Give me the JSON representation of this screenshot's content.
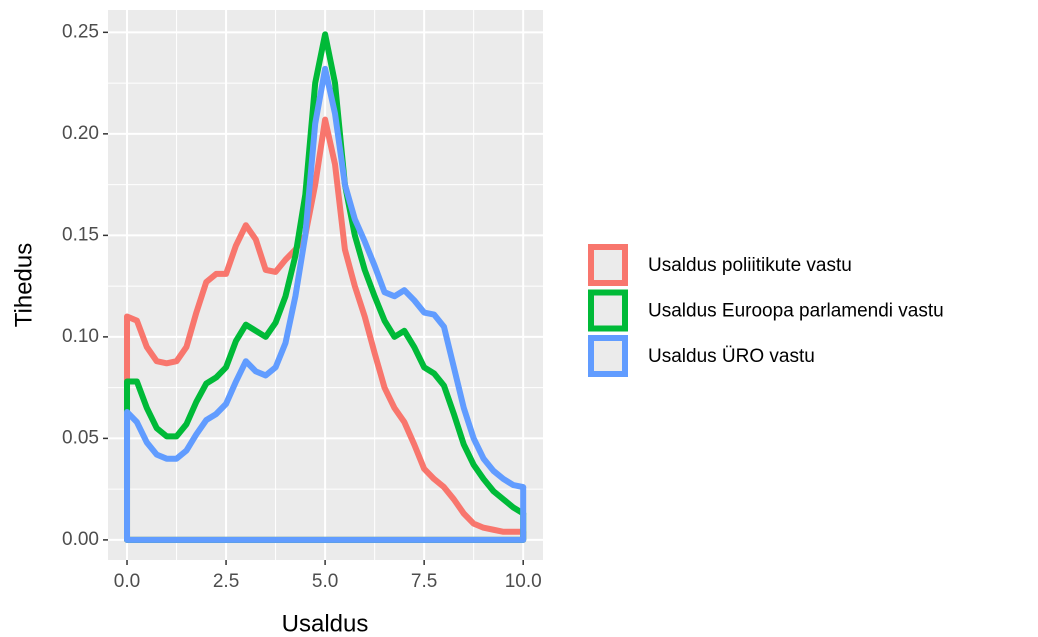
{
  "chart_data": {
    "type": "density",
    "x_label": "Usaldus",
    "y_label": "Tihedus",
    "x": [
      0,
      0.25,
      0.5,
      0.75,
      1,
      1.25,
      1.5,
      1.75,
      2,
      2.25,
      2.5,
      2.75,
      3,
      3.25,
      3.5,
      3.75,
      4,
      4.25,
      4.5,
      4.75,
      5,
      5.25,
      5.5,
      5.75,
      6,
      6.25,
      6.5,
      6.75,
      7,
      7.25,
      7.5,
      7.75,
      8,
      8.25,
      8.5,
      8.75,
      9,
      9.25,
      9.5,
      9.75,
      10
    ],
    "series": [
      {
        "name": "Usaldus poliitikute vastu",
        "color": "#f8766d",
        "values": [
          0.11,
          0.108,
          0.095,
          0.088,
          0.087,
          0.088,
          0.095,
          0.112,
          0.127,
          0.131,
          0.131,
          0.145,
          0.155,
          0.148,
          0.133,
          0.132,
          0.138,
          0.143,
          0.15,
          0.175,
          0.207,
          0.185,
          0.143,
          0.125,
          0.11,
          0.092,
          0.075,
          0.065,
          0.058,
          0.047,
          0.035,
          0.03,
          0.026,
          0.02,
          0.013,
          0.008,
          0.006,
          0.005,
          0.004,
          0.004,
          0.004
        ]
      },
      {
        "name": "Usaldus Euroopa parlamendi vastu",
        "color": "#00ba38",
        "values": [
          0.078,
          0.078,
          0.065,
          0.055,
          0.051,
          0.051,
          0.057,
          0.068,
          0.077,
          0.08,
          0.085,
          0.098,
          0.106,
          0.103,
          0.1,
          0.107,
          0.12,
          0.14,
          0.17,
          0.225,
          0.249,
          0.225,
          0.175,
          0.15,
          0.133,
          0.12,
          0.108,
          0.1,
          0.103,
          0.095,
          0.085,
          0.082,
          0.076,
          0.062,
          0.047,
          0.037,
          0.03,
          0.024,
          0.02,
          0.016,
          0.013
        ]
      },
      {
        "name": "Usaldus ÜRO vastu",
        "color": "#619cff",
        "values": [
          0.063,
          0.058,
          0.048,
          0.042,
          0.04,
          0.04,
          0.044,
          0.052,
          0.059,
          0.062,
          0.067,
          0.078,
          0.088,
          0.083,
          0.081,
          0.085,
          0.097,
          0.12,
          0.15,
          0.205,
          0.232,
          0.21,
          0.175,
          0.158,
          0.147,
          0.135,
          0.122,
          0.12,
          0.123,
          0.118,
          0.112,
          0.111,
          0.105,
          0.085,
          0.065,
          0.05,
          0.04,
          0.034,
          0.03,
          0.027,
          0.026
        ]
      }
    ],
    "xlim": [
      -0.48,
      10.5
    ],
    "ylim": [
      -0.0099,
      0.261
    ],
    "xticks": [
      {
        "value": 0,
        "label": "0.0"
      },
      2.5,
      {
        "value": 5,
        "label": "5.0"
      },
      7.5,
      {
        "value": 10,
        "label": "10.0"
      }
    ],
    "yticks": [
      {
        "value": 0,
        "label": "0.00"
      },
      0.05,
      {
        "value": 0.1,
        "label": "0.10"
      },
      0.15,
      {
        "value": 0.2,
        "label": "0.20"
      },
      0.25
    ],
    "grid": true,
    "legend": "right"
  }
}
